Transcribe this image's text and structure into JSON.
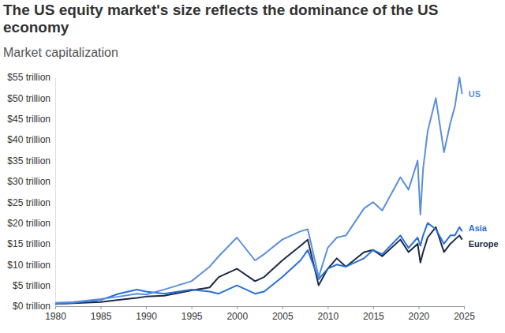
{
  "chart_data": {
    "type": "line",
    "title": "The US equity market's size reflects the dominance of the US economy",
    "subtitle": "Market capitalization",
    "x": [
      1980,
      1982,
      1985,
      1987,
      1989,
      1990,
      1992,
      1995,
      1997,
      1998,
      2000,
      2002,
      2003,
      2005,
      2007,
      2007.8,
      2009,
      2010,
      2011,
      2012,
      2014,
      2015,
      2016,
      2018,
      2018.9,
      2019.9,
      2020.2,
      2020.5,
      2021,
      2021.9,
      2022.8,
      2023.5,
      2024,
      2024.5,
      2024.8
    ],
    "series": [
      {
        "name": "US",
        "color": "#5b8fdc",
        "values": [
          0.8,
          1.0,
          1.7,
          2.3,
          3.0,
          2.8,
          4.0,
          6.0,
          9.5,
          12.0,
          16.5,
          11.0,
          12.5,
          16.0,
          18.0,
          18.5,
          7.0,
          14.0,
          16.5,
          17.0,
          23.5,
          25.0,
          23.0,
          31.0,
          28.0,
          35.0,
          22.0,
          33.0,
          42.0,
          50.0,
          37.0,
          44.0,
          48.0,
          55.0,
          51.0
        ]
      },
      {
        "name": "Asia",
        "color": "#2a6fd8",
        "values": [
          0.5,
          0.8,
          1.5,
          3.0,
          4.0,
          3.5,
          3.0,
          4.0,
          3.5,
          3.0,
          5.0,
          3.0,
          3.5,
          7.0,
          11.0,
          13.5,
          6.5,
          9.0,
          10.0,
          9.5,
          11.5,
          13.5,
          12.5,
          17.0,
          14.0,
          16.5,
          14.5,
          17.0,
          20.0,
          18.5,
          15.0,
          17.0,
          17.0,
          19.0,
          18.0
        ]
      },
      {
        "name": "Europe",
        "color": "#1b2a45",
        "values": [
          0.5,
          0.7,
          1.0,
          1.5,
          2.0,
          2.3,
          2.5,
          3.8,
          4.5,
          7.0,
          9.0,
          6.0,
          7.0,
          11.0,
          14.5,
          16.0,
          5.0,
          9.0,
          11.5,
          9.5,
          13.0,
          13.5,
          12.0,
          16.0,
          13.0,
          15.0,
          10.5,
          13.0,
          16.5,
          19.0,
          13.0,
          15.0,
          16.0,
          17.0,
          16.0
        ]
      }
    ],
    "xlim": [
      1980,
      2025
    ],
    "xticks": [
      1980,
      1985,
      1990,
      1995,
      2000,
      2005,
      2010,
      2015,
      2020,
      2025
    ],
    "ylim": [
      0,
      55
    ],
    "yticks": [
      {
        "value": 0,
        "label": "$0 trillion"
      },
      {
        "value": 5,
        "label": "$5 trillion"
      },
      {
        "value": 10,
        "label": "$10 trillion"
      },
      {
        "value": 15,
        "label": "$15 trillion"
      },
      {
        "value": 20,
        "label": "$20 trillion"
      },
      {
        "value": 25,
        "label": "$25 trillion"
      },
      {
        "value": 30,
        "label": "$30 trillion"
      },
      {
        "value": 35,
        "label": "$35 trillion"
      },
      {
        "value": 40,
        "label": "$40 trillion"
      },
      {
        "value": 45,
        "label": "$45 trillion"
      },
      {
        "value": 50,
        "label": "$50 trillion"
      },
      {
        "value": 55,
        "label": "$55 trillion"
      }
    ],
    "grid": false
  }
}
